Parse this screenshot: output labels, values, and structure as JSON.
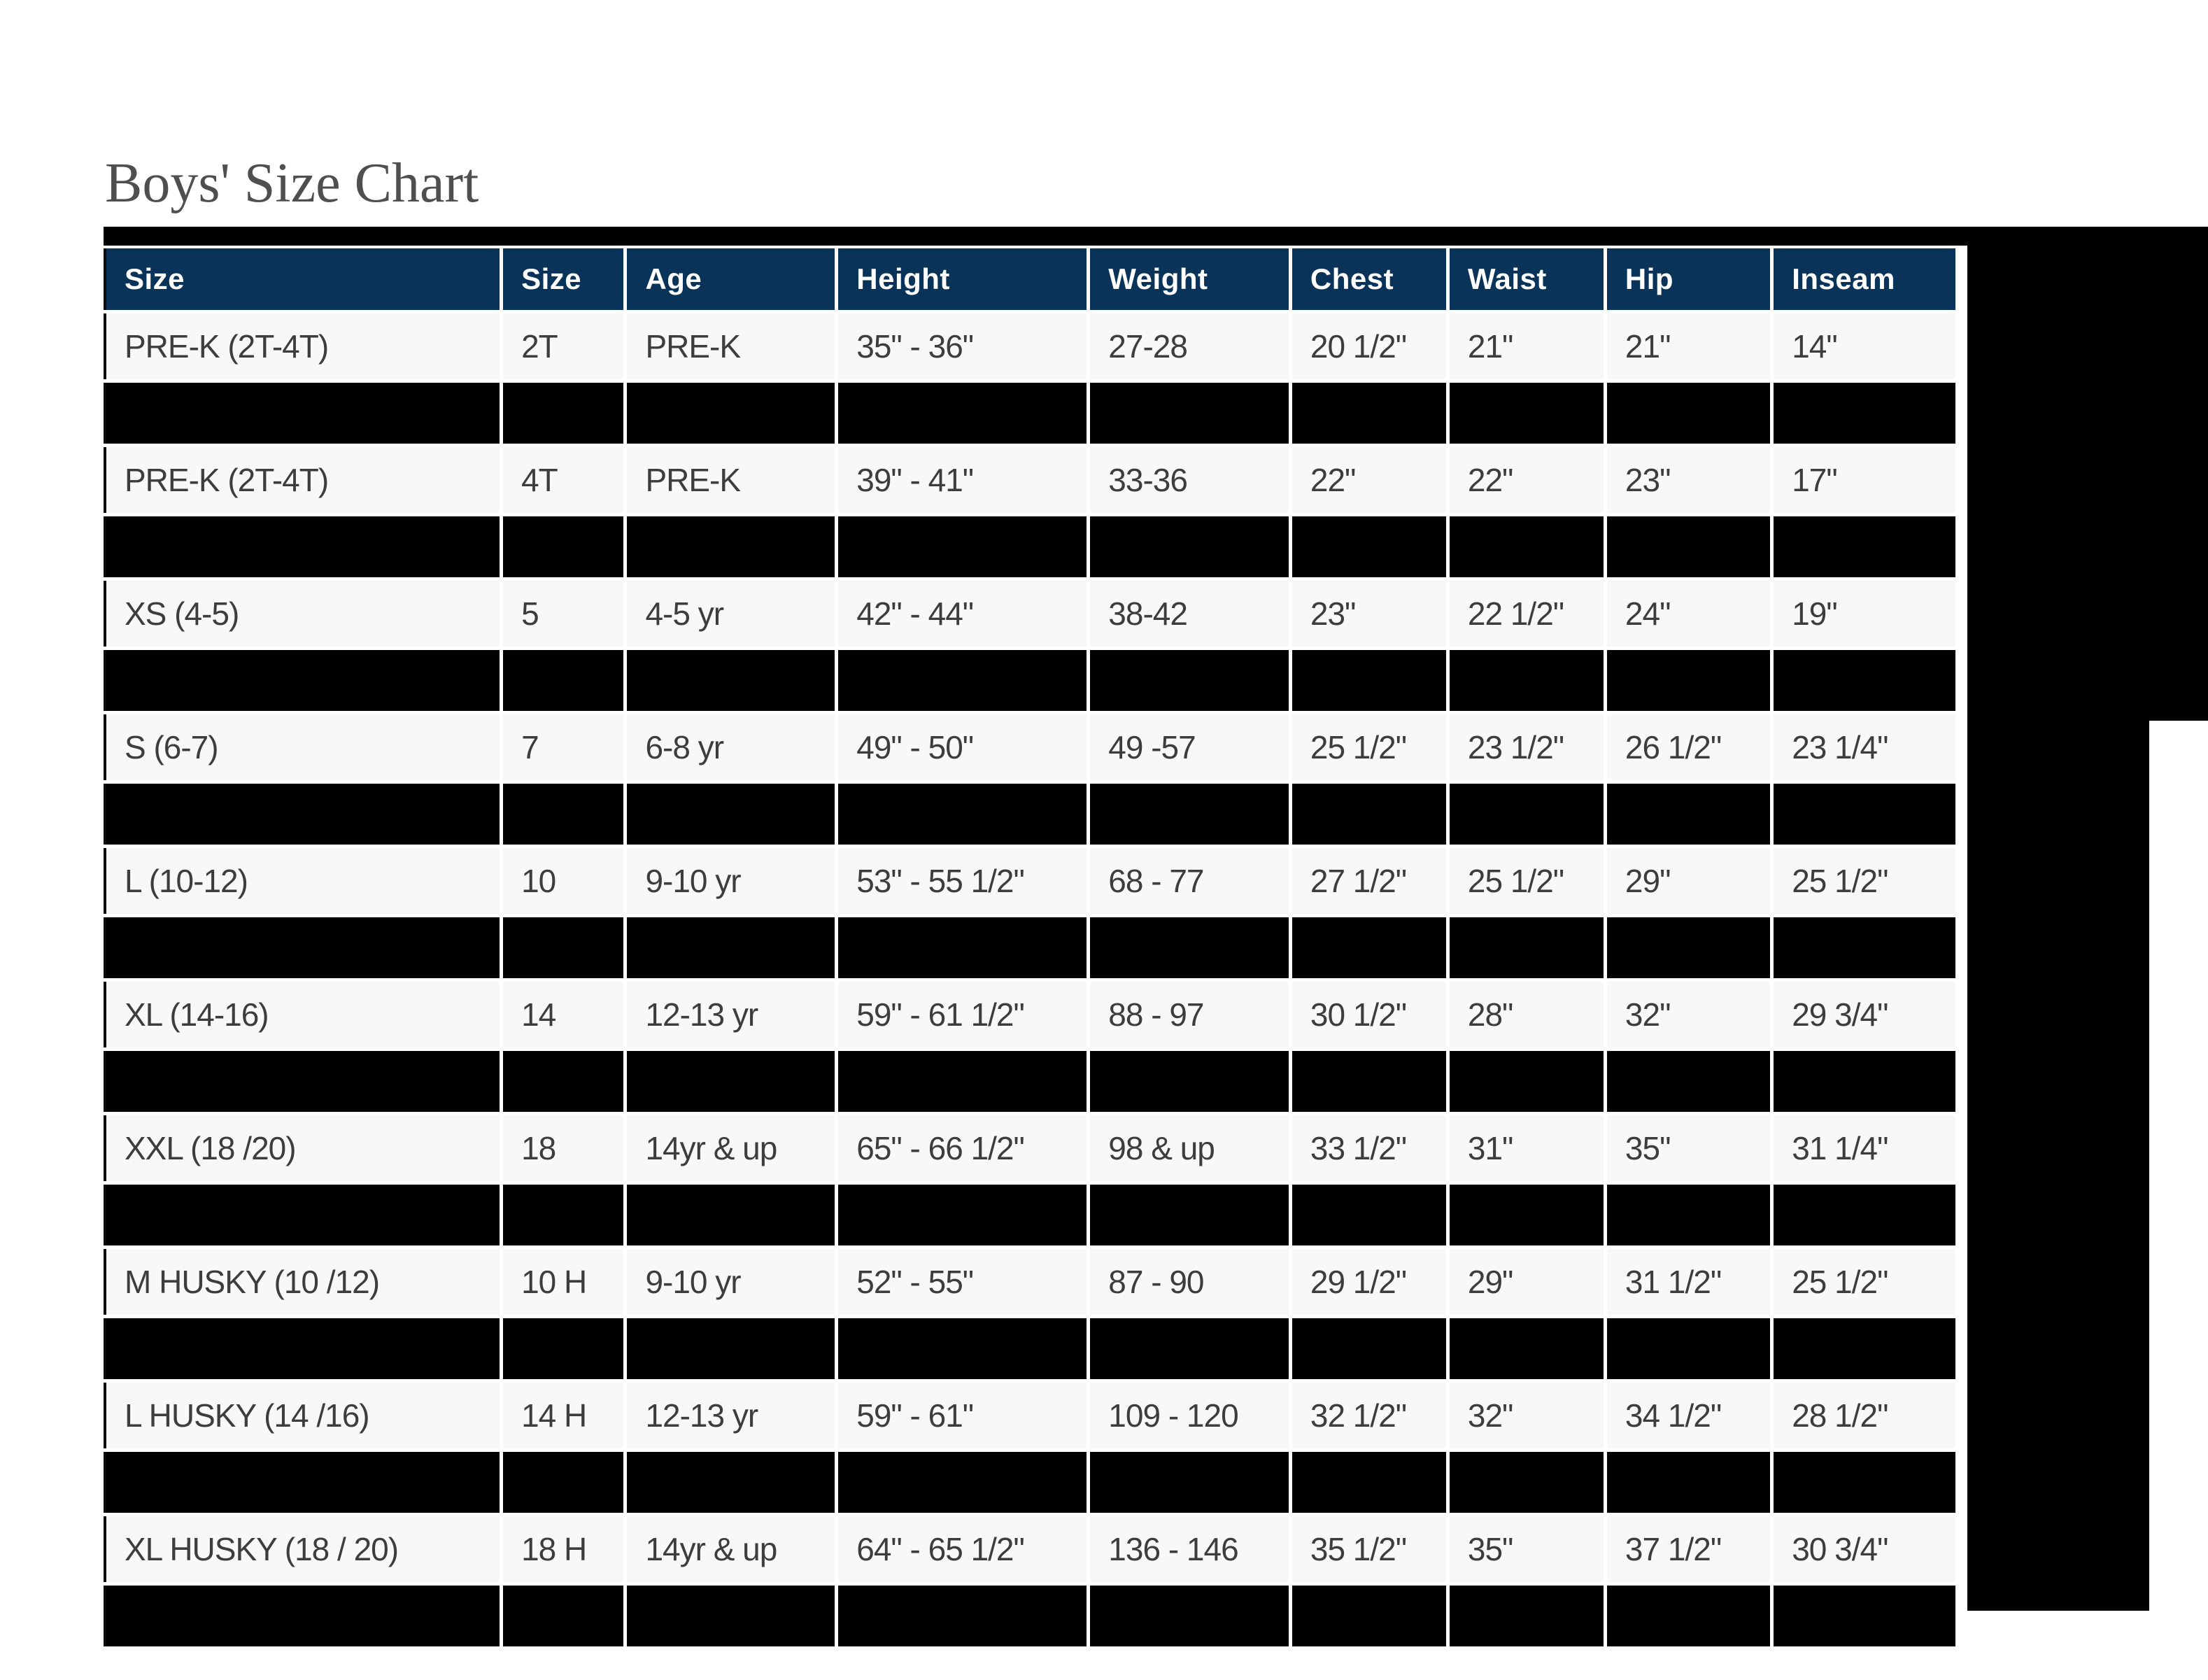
{
  "title": "Boys' Size Chart",
  "colors": {
    "header_bg": "#0a3359",
    "header_text": "#ffffff",
    "row_bg": "#f8f8f8",
    "cell_text": "#3d3d3d",
    "redacted_bg": "#000000",
    "title_text": "#4f4f4f"
  },
  "table": {
    "columns": [
      "Size",
      "Size",
      "Age",
      "Height",
      "Weight",
      "Chest",
      "Waist",
      "Hip",
      "Inseam"
    ],
    "rows": [
      {
        "type": "data",
        "cells": [
          "PRE-K (2T-4T)",
          "2T",
          "PRE-K",
          "35\" - 36\"",
          "27-28",
          "20 1/2\"",
          "21\"",
          "21\"",
          "14\""
        ]
      },
      {
        "type": "redacted",
        "cells": [
          "",
          "",
          "",
          "",
          "",
          "",
          "",
          "",
          ""
        ]
      },
      {
        "type": "data",
        "cells": [
          "PRE-K (2T-4T)",
          "4T",
          "PRE-K",
          "39\" - 41\"",
          "33-36",
          "22\"",
          "22\"",
          "23\"",
          "17\""
        ]
      },
      {
        "type": "redacted",
        "cells": [
          "",
          "",
          "",
          "",
          "",
          "",
          "",
          "",
          ""
        ]
      },
      {
        "type": "data",
        "cells": [
          "XS (4-5)",
          "5",
          "4-5 yr",
          "42\" - 44\"",
          "38-42",
          "23\"",
          "22 1/2\"",
          "24\"",
          "19\""
        ]
      },
      {
        "type": "redacted",
        "cells": [
          "",
          "",
          "",
          "",
          "",
          "",
          "",
          "",
          ""
        ]
      },
      {
        "type": "data",
        "cells": [
          "S (6-7)",
          "7",
          "6-8 yr",
          "49\" - 50\"",
          "49 -57",
          "25 1/2\"",
          "23 1/2\"",
          "26 1/2\"",
          "23 1/4\""
        ]
      },
      {
        "type": "redacted",
        "cells": [
          "",
          "",
          "",
          "",
          "",
          "",
          "",
          "",
          ""
        ]
      },
      {
        "type": "data",
        "cells": [
          "L (10-12)",
          "10",
          "9-10 yr",
          "53\" - 55 1/2\"",
          "68 - 77",
          "27 1/2\"",
          "25 1/2\"",
          "29\"",
          "25 1/2\""
        ]
      },
      {
        "type": "redacted",
        "cells": [
          "",
          "",
          "",
          "",
          "",
          "",
          "",
          "",
          ""
        ]
      },
      {
        "type": "data",
        "cells": [
          "XL (14-16)",
          "14",
          "12-13 yr",
          "59\" - 61 1/2\"",
          "88 - 97",
          "30 1/2\"",
          "28\"",
          "32\"",
          "29 3/4\""
        ]
      },
      {
        "type": "redacted",
        "cells": [
          "",
          "",
          "",
          "",
          "",
          "",
          "",
          "",
          ""
        ]
      },
      {
        "type": "data",
        "cells": [
          "XXL (18 /20)",
          "18",
          "14yr & up",
          "65\" - 66 1/2\"",
          "98 & up",
          "33 1/2\"",
          "31\"",
          "35\"",
          "31 1/4\""
        ]
      },
      {
        "type": "redacted",
        "cells": [
          "",
          "",
          "",
          "",
          "",
          "",
          "",
          "",
          ""
        ]
      },
      {
        "type": "data",
        "cells": [
          "M HUSKY (10 /12)",
          "10 H",
          "9-10 yr",
          "52\" - 55\"",
          "87 - 90",
          "29 1/2\"",
          "29\"",
          "31 1/2\"",
          "25 1/2\""
        ]
      },
      {
        "type": "redacted",
        "cells": [
          "",
          "",
          "",
          "",
          "",
          "",
          "",
          "",
          ""
        ]
      },
      {
        "type": "data",
        "cells": [
          "L HUSKY (14 /16)",
          "14 H",
          "12-13 yr",
          "59\" - 61\"",
          "109 - 120",
          "32 1/2\"",
          "32\"",
          "34 1/2\"",
          "28 1/2\""
        ]
      },
      {
        "type": "redacted",
        "cells": [
          "",
          "",
          "",
          "",
          "",
          "",
          "",
          "",
          ""
        ]
      },
      {
        "type": "data",
        "cells": [
          "XL HUSKY (18 / 20)",
          "18 H",
          "14yr & up",
          "64\" - 65 1/2\"",
          "136 - 146",
          "35 1/2\"",
          "35\"",
          "37 1/2\"",
          "30 3/4\""
        ]
      },
      {
        "type": "redacted",
        "cells": [
          "",
          "",
          "",
          "",
          "",
          "",
          "",
          "",
          ""
        ]
      }
    ]
  }
}
